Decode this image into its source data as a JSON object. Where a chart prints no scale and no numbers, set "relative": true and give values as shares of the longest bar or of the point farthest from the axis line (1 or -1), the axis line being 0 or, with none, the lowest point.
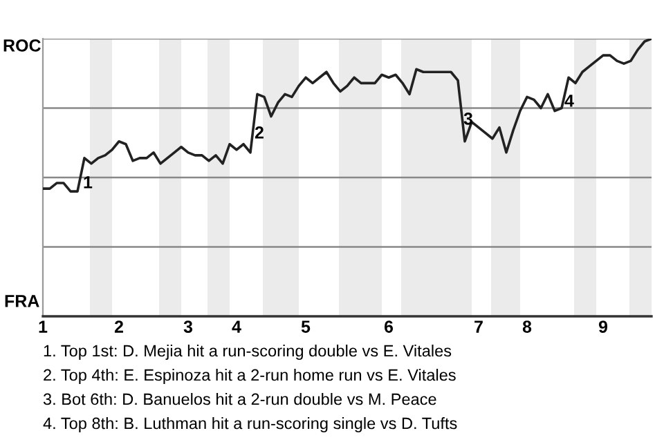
{
  "chart_data": {
    "type": "line",
    "relative": true,
    "categories": [
      "1",
      null,
      null,
      null,
      null,
      null,
      null,
      null,
      null,
      null,
      null,
      "2",
      null,
      null,
      null,
      null,
      null,
      null,
      null,
      null,
      null,
      "3",
      null,
      null,
      null,
      null,
      null,
      null,
      "4",
      null,
      null,
      null,
      null,
      null,
      null,
      null,
      null,
      null,
      "5",
      null,
      null,
      null,
      null,
      null,
      null,
      null,
      null,
      null,
      null,
      null,
      "6",
      null,
      null,
      null,
      null,
      null,
      null,
      null,
      null,
      null,
      null,
      null,
      null,
      "7",
      null,
      null,
      null,
      null,
      null,
      null,
      "8",
      null,
      null,
      null,
      null,
      null,
      null,
      null,
      null,
      null,
      null,
      "9",
      null,
      null,
      null,
      null,
      null,
      null,
      null
    ],
    "series": [
      {
        "color": "#222222",
        "values": [
          0.46,
          0.46,
          0.48,
          0.48,
          0.45,
          0.45,
          0.57,
          0.55,
          0.57,
          0.58,
          0.6,
          0.63,
          0.62,
          0.56,
          0.57,
          0.57,
          0.59,
          0.55,
          0.57,
          0.59,
          0.61,
          0.59,
          0.58,
          0.58,
          0.56,
          0.58,
          0.55,
          0.62,
          0.6,
          0.62,
          0.59,
          0.8,
          0.79,
          0.72,
          0.77,
          0.8,
          0.79,
          0.83,
          0.86,
          0.84,
          0.86,
          0.88,
          0.84,
          0.81,
          0.83,
          0.86,
          0.84,
          0.84,
          0.84,
          0.87,
          0.86,
          0.87,
          0.84,
          0.8,
          0.89,
          0.88,
          0.88,
          0.88,
          0.88,
          0.88,
          0.85,
          0.63,
          0.7,
          0.68,
          0.66,
          0.64,
          0.68,
          0.59,
          0.67,
          0.74,
          0.79,
          0.78,
          0.75,
          0.8,
          0.74,
          0.75,
          0.86,
          0.84,
          0.88,
          0.9,
          0.92,
          0.94,
          0.94,
          0.92,
          0.91,
          0.92,
          0.96,
          0.99,
          1.0
        ]
      }
    ],
    "grid": false,
    "marker": "none",
    "line_style": "solid",
    "ref_lines": [
      {
        "axis": "y",
        "value": 0.25,
        "color": "#888888"
      },
      {
        "axis": "y",
        "value": 0.5,
        "color": "#888888"
      },
      {
        "axis": "y",
        "value": 0.75,
        "color": "#888888"
      },
      {
        "axis": "y",
        "value": 1.0,
        "color": "#888888"
      }
    ],
    "annotations": [
      "ROC",
      "FRA",
      "1",
      "2",
      "3",
      "4",
      "1. Top 1st: D. Mejia hit a run-scoring double vs E. Vitales",
      "2. Top 4th: E. Espinoza hit a 2-run home run vs E. Vitales",
      "3. Bot 6th: D. Banuelos hit a 2-run double vs M. Peace",
      "4. Top 8th: B. Luthman hit a run-scoring single vs D. Tufts"
    ]
  }
}
